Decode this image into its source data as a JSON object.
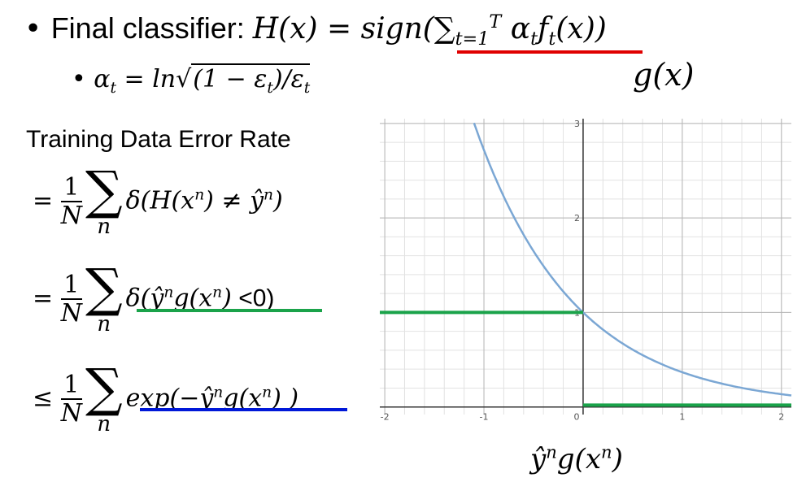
{
  "line1": {
    "label": "Final classifier: ",
    "formula_lhs": "H(x) = sign(",
    "formula_sum": "∑",
    "sum_sub": "t=1",
    "sum_sup": "T",
    "formula_body": " α",
    "alpha_sub": "t",
    "f": "f",
    "f_sub": "t",
    "f_tail": "(x))",
    "underline_color": "#e00000"
  },
  "line2": {
    "alpha": "α",
    "alpha_sub": "t",
    "eq": " = ln",
    "sqrt": "√",
    "radicand_a": "(1 − ε",
    "radicand_a_sub": "t",
    "radicand_b": ")/ε",
    "radicand_b_sub": "t"
  },
  "gx_label": "g(x)",
  "error_block": {
    "title": "Training Data Error Rate",
    "frac_num": "1",
    "frac_den": "N",
    "sum_symbol": "∑",
    "sum_sub": "n",
    "row1": {
      "rel": "=",
      "expr": "δ(H(x",
      "sup1": "n",
      "expr2": ") ≠ ŷ",
      "sup2": "n",
      "expr3": ")"
    },
    "row2": {
      "rel": "=",
      "expr": "δ(ŷ",
      "sup1": "n",
      "expr2": "g(x",
      "sup2": "n",
      "expr3": ")",
      "tail": " <0)",
      "underline_color": "#1aa34a"
    },
    "row3": {
      "rel": "≤",
      "expr": "exp(−ŷ",
      "sup1": "n",
      "expr2": "g(x",
      "sup2": "n",
      "expr3": ") )",
      "underline_color": "#0018d8"
    }
  },
  "x_axis_label": {
    "a": "ŷ",
    "sup1": "n",
    "b": "g(x",
    "sup2": "n",
    "c": ")"
  },
  "chart_data": {
    "type": "line",
    "xlim": [
      -2.05,
      2.1
    ],
    "ylim": [
      -0.08,
      3.05
    ],
    "x_ticks": [
      "-2",
      "-1",
      "0",
      "1",
      "2"
    ],
    "y_ticks": [
      "1",
      "2",
      "3"
    ],
    "grid": true,
    "series": [
      {
        "function": "exp(-x)",
        "color": "#7ba7d4",
        "x": [
          -1.1,
          -0.75,
          -0.5,
          -0.25,
          0,
          0.25,
          0.5,
          0.75,
          1,
          1.5,
          2.1
        ],
        "y": [
          3.0,
          2.12,
          1.65,
          1.28,
          1.0,
          0.78,
          0.61,
          0.47,
          0.37,
          0.22,
          0.12
        ]
      },
      {
        "function": "step",
        "color": "#1aa34a",
        "segments": [
          {
            "x": [
              -2.05,
              0
            ],
            "y": [
              1,
              1
            ]
          },
          {
            "x": [
              0,
              2.1
            ],
            "y": [
              0.02,
              0.02
            ]
          }
        ]
      }
    ]
  }
}
